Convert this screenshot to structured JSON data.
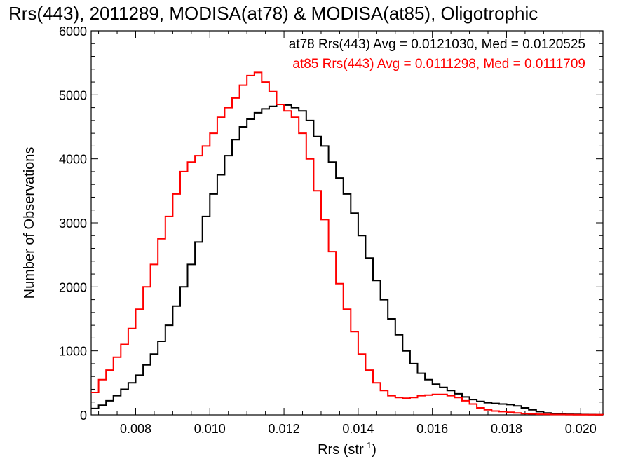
{
  "chart_data": {
    "type": "line",
    "title": "Rrs(443), 2011289, MODISA(at78) & MODISA(at85), Oligotrophic",
    "xlabel": "Rrs (str",
    "xlabel_sup": "-1",
    "xlabel_close": ")",
    "ylabel": "Number of Observations",
    "xlim": [
      0.0068,
      0.0206
    ],
    "ylim": [
      0,
      6000
    ],
    "xticks": [
      0.008,
      0.01,
      0.012,
      0.014,
      0.016,
      0.018,
      0.02
    ],
    "xtick_labels": [
      "0.008",
      "0.010",
      "0.012",
      "0.014",
      "0.016",
      "0.018",
      "0.020"
    ],
    "yticks": [
      0,
      1000,
      2000,
      3000,
      4000,
      5000,
      6000
    ],
    "ytick_labels": [
      "0",
      "1000",
      "2000",
      "3000",
      "4000",
      "5000",
      "6000"
    ],
    "grid": false,
    "legend_position": "top-right",
    "series": [
      {
        "name": "at78 Rrs(443) Avg = 0.0121030, Med = 0.0120525",
        "color": "#000000",
        "x": [
          0.0068,
          0.007,
          0.0072,
          0.0074,
          0.0076,
          0.0078,
          0.008,
          0.0082,
          0.0084,
          0.0086,
          0.0088,
          0.009,
          0.0092,
          0.0094,
          0.0096,
          0.0098,
          0.01,
          0.0102,
          0.0104,
          0.0106,
          0.0108,
          0.011,
          0.0112,
          0.0114,
          0.0116,
          0.0118,
          0.012,
          0.0122,
          0.0124,
          0.0126,
          0.0128,
          0.013,
          0.0132,
          0.0134,
          0.0136,
          0.0138,
          0.014,
          0.0142,
          0.0144,
          0.0146,
          0.0148,
          0.015,
          0.0152,
          0.0154,
          0.0156,
          0.0158,
          0.016,
          0.0162,
          0.0164,
          0.0166,
          0.0168,
          0.017,
          0.0172,
          0.0174,
          0.0176,
          0.0178,
          0.018,
          0.0182,
          0.0184,
          0.0186,
          0.0188,
          0.019,
          0.0192,
          0.0194,
          0.0196,
          0.0198,
          0.02,
          0.0202,
          0.0204,
          0.0206
        ],
        "values": [
          100,
          150,
          220,
          300,
          400,
          500,
          620,
          780,
          950,
          1150,
          1400,
          1700,
          2000,
          2350,
          2700,
          3100,
          3450,
          3750,
          4050,
          4300,
          4500,
          4620,
          4720,
          4780,
          4820,
          4850,
          4840,
          4800,
          4750,
          4600,
          4350,
          4200,
          3950,
          3700,
          3450,
          3150,
          2800,
          2450,
          2100,
          1800,
          1500,
          1250,
          1000,
          800,
          650,
          550,
          480,
          430,
          380,
          330,
          280,
          240,
          210,
          190,
          180,
          170,
          160,
          140,
          110,
          80,
          50,
          30,
          20,
          15,
          10,
          8,
          6,
          4,
          3,
          2
        ]
      },
      {
        "name": "at85 Rrs(443) Avg = 0.0111298, Med = 0.0111709",
        "color": "#ff0000",
        "x": [
          0.0068,
          0.007,
          0.0072,
          0.0074,
          0.0076,
          0.0078,
          0.008,
          0.0082,
          0.0084,
          0.0086,
          0.0088,
          0.009,
          0.0092,
          0.0094,
          0.0096,
          0.0098,
          0.01,
          0.0102,
          0.0104,
          0.0106,
          0.0108,
          0.011,
          0.0112,
          0.0114,
          0.0116,
          0.0118,
          0.012,
          0.0122,
          0.0124,
          0.0126,
          0.0128,
          0.013,
          0.0132,
          0.0134,
          0.0136,
          0.0138,
          0.014,
          0.0142,
          0.0144,
          0.0146,
          0.0148,
          0.015,
          0.0152,
          0.0154,
          0.0156,
          0.0158,
          0.016,
          0.0162,
          0.0164,
          0.0166,
          0.0168,
          0.017,
          0.0172,
          0.0174,
          0.0176,
          0.0178,
          0.018,
          0.0182,
          0.0184,
          0.0186,
          0.0188,
          0.019,
          0.0192,
          0.0194,
          0.0196,
          0.0198,
          0.02,
          0.0202,
          0.0204,
          0.0206
        ],
        "values": [
          350,
          550,
          700,
          900,
          1100,
          1350,
          1650,
          2000,
          2350,
          2750,
          3100,
          3450,
          3800,
          3950,
          4050,
          4200,
          4400,
          4650,
          4800,
          4950,
          5150,
          5300,
          5350,
          5200,
          5050,
          4850,
          4750,
          4650,
          4400,
          4000,
          3500,
          3050,
          2550,
          2050,
          1650,
          1300,
          950,
          700,
          500,
          380,
          300,
          270,
          260,
          270,
          300,
          310,
          320,
          320,
          300,
          270,
          220,
          170,
          110,
          80,
          60,
          50,
          40,
          30,
          20,
          15,
          10,
          8,
          6,
          5,
          4,
          3,
          2,
          2,
          2,
          1
        ]
      }
    ]
  }
}
